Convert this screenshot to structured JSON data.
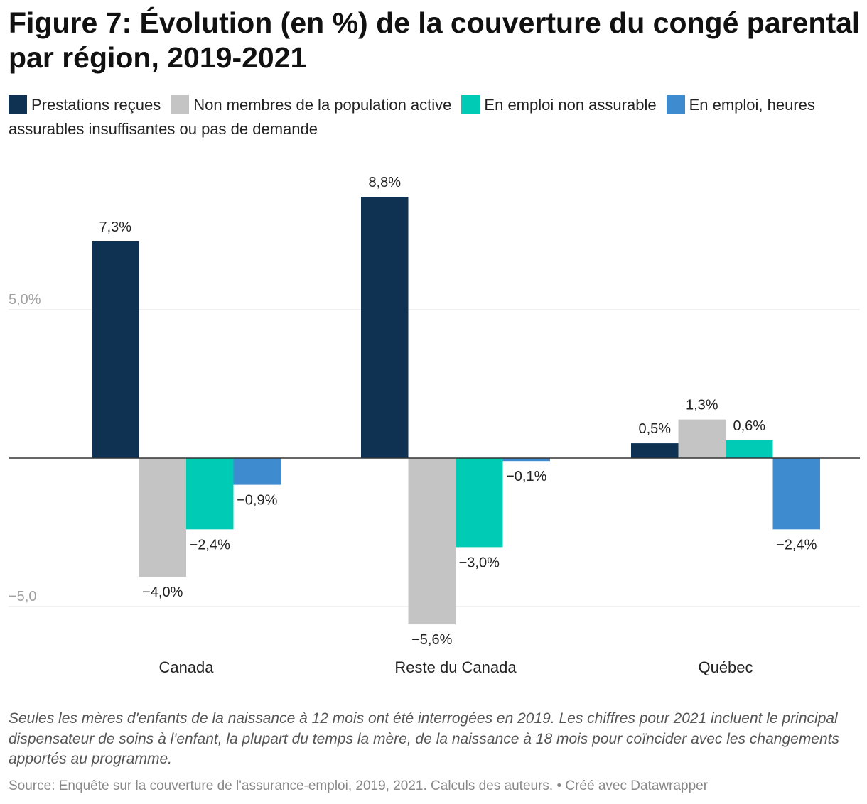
{
  "title": "Figure 7: Évolution (en %) de la couverture du congé parental par région, 2019-2021",
  "notes": "Seules les mères d'enfants de la naissance à 12 mois ont été interrogées en 2019. Les chiffres pour 2021 incluent le principal dispensateur de soins à l'enfant, la plupart du temps la mère, de la naissance à 18 mois pour coïncider avec les changements apportés au programme.",
  "source": "Source: Enquête sur la couverture de l'assurance-emploi, 2019, 2021. Calculs des auteurs. • Créé avec Datawrapper",
  "chart_data": {
    "type": "bar",
    "title": "Figure 7: Évolution (en %) de la couverture du congé parental par région, 2019-2021",
    "xlabel": "",
    "ylabel": "",
    "ylim": [
      -6.5,
      9.5
    ],
    "categories": [
      "Canada",
      "Reste du Canada",
      "Québec"
    ],
    "y_ticks": [
      {
        "value": 5,
        "label": "5,0%"
      },
      {
        "value": -5,
        "label": "−5,0"
      }
    ],
    "grid": true,
    "legend_position": "top",
    "series": [
      {
        "name": "Prestations reçues",
        "color": "#0f3152",
        "values": [
          7.3,
          8.8,
          0.5
        ],
        "labels": [
          "7,3%",
          "8,8%",
          "0,5%"
        ]
      },
      {
        "name": "Non membres de la population active",
        "color": "#c4c4c4",
        "values": [
          -4.0,
          -5.6,
          1.3
        ],
        "labels": [
          "−4,0%",
          "−5,6%",
          "1,3%"
        ]
      },
      {
        "name": "En emploi non assurable",
        "color": "#00cbb5",
        "values": [
          -2.4,
          -3.0,
          0.6
        ],
        "labels": [
          "−2,4%",
          "−3,0%",
          "0,6%"
        ]
      },
      {
        "name": "En emploi, heures assurables insuffisantes ou pas de demande",
        "color": "#3f8bd0",
        "values": [
          -0.9,
          -0.1,
          -2.4
        ],
        "labels": [
          "−0,9%",
          "−0,1%",
          "−2,4%"
        ]
      }
    ]
  }
}
